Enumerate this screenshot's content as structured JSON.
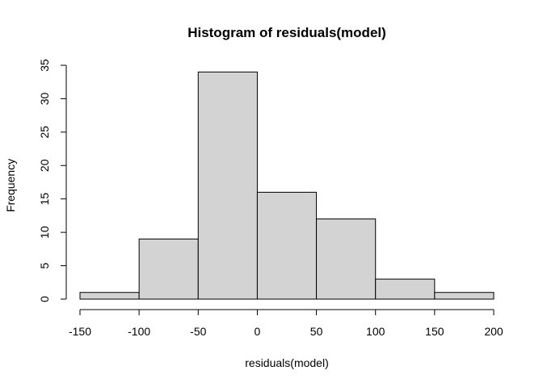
{
  "chart_data": {
    "type": "bar",
    "title": "Histogram of residuals(model)",
    "xlabel": "residuals(model)",
    "ylabel": "Frequency",
    "bins": [
      {
        "from": -150,
        "to": -100,
        "count": 1
      },
      {
        "from": -100,
        "to": -50,
        "count": 9
      },
      {
        "from": -50,
        "to": 0,
        "count": 34
      },
      {
        "from": 0,
        "to": 50,
        "count": 16
      },
      {
        "from": 50,
        "to": 100,
        "count": 12
      },
      {
        "from": 100,
        "to": 150,
        "count": 3
      },
      {
        "from": 150,
        "to": 200,
        "count": 1
      }
    ],
    "xlim": [
      -150,
      200
    ],
    "ylim": [
      0,
      35
    ],
    "x_ticks": [
      -150,
      -100,
      -50,
      0,
      50,
      100,
      150,
      200
    ],
    "y_ticks": [
      0,
      5,
      10,
      15,
      20,
      25,
      30,
      35
    ],
    "bar_color": "#d3d3d3",
    "grid": false,
    "legend": "none"
  }
}
